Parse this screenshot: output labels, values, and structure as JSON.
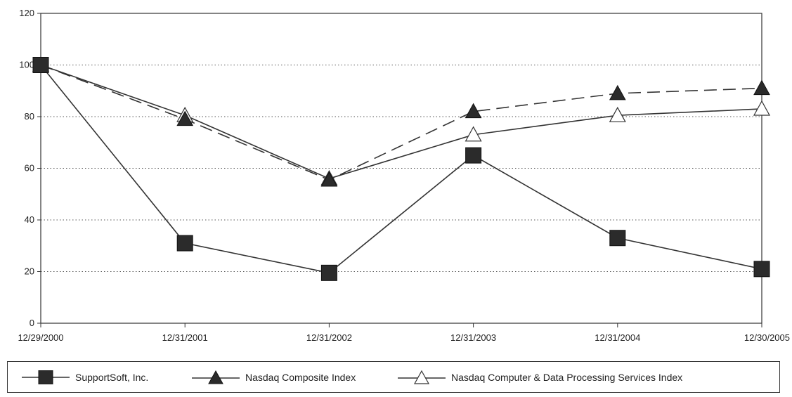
{
  "chart_data": {
    "type": "line",
    "title": "",
    "xlabel": "",
    "ylabel": "",
    "categories": [
      "12/29/2000",
      "12/31/2001",
      "12/31/2002",
      "12/31/2003",
      "12/31/2004",
      "12/30/2005"
    ],
    "ylim": [
      0,
      120
    ],
    "yticks": [
      "0",
      "20",
      "40",
      "60",
      "80",
      "100",
      "120"
    ],
    "grid": "horizontal dotted",
    "legend_position": "bottom",
    "series": [
      {
        "name": "SupportSoft, Inc.",
        "marker": "filled-square",
        "line": "solid",
        "values": [
          100,
          31,
          19.5,
          65,
          33,
          21
        ]
      },
      {
        "name": "Nasdaq Composite Index",
        "marker": "filled-triangle",
        "line": "dashed",
        "values": [
          100,
          79,
          55.5,
          82,
          89,
          91
        ]
      },
      {
        "name": "Nasdaq Computer & Data Processing Services Index",
        "marker": "open-triangle",
        "line": "solid",
        "values": [
          100,
          80.5,
          56,
          73,
          80.5,
          83
        ]
      }
    ]
  }
}
